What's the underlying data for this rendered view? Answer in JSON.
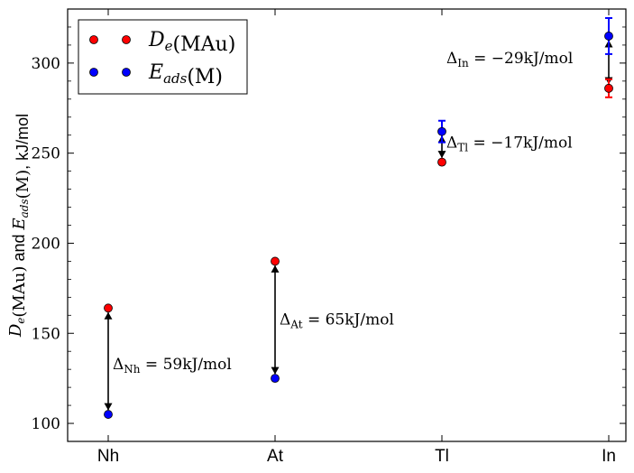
{
  "chart_data": {
    "type": "scatter",
    "categories": [
      "Nh",
      "At",
      "Tl",
      "In"
    ],
    "ylabel": {
      "parts": [
        {
          "t": "D",
          "serif": true,
          "italic": true
        },
        {
          "t": "e",
          "serif": true,
          "italic": true,
          "sub": true
        },
        {
          "t": "(MAu)",
          "serif": true
        },
        {
          "t": " and "
        },
        {
          "t": "E",
          "serif": true,
          "italic": true
        },
        {
          "t": "ads",
          "serif": true,
          "italic": true,
          "sub": true
        },
        {
          "t": "(M)",
          "serif": true
        },
        {
          "t": ", kJ/mol"
        }
      ]
    },
    "ylim": [
      90,
      330
    ],
    "yticks": [
      100,
      150,
      200,
      250,
      300
    ],
    "series": [
      {
        "name": "De(MAu)",
        "legend_parts": [
          {
            "t": "D",
            "italic": true
          },
          {
            "t": "e",
            "italic": true,
            "sub": true
          },
          {
            "t": "(MAu)"
          }
        ],
        "color": "#ff0000",
        "values": [
          164,
          190,
          245,
          286
        ],
        "errors": [
          0,
          0,
          0,
          5
        ]
      },
      {
        "name": "Eads(M)",
        "legend_parts": [
          {
            "t": "E",
            "italic": true
          },
          {
            "t": "ads",
            "italic": true,
            "sub": true
          },
          {
            "t": "(M)"
          }
        ],
        "color": "#0000ff",
        "values": [
          105,
          125,
          262,
          315
        ],
        "errors": [
          0,
          0,
          6,
          10
        ]
      }
    ],
    "annotations": [
      {
        "category": "Nh",
        "from": 105,
        "to": 164,
        "sym": "Δ",
        "sub": "Nh",
        "value_text": " = 59kJ/mol",
        "label_y": 133,
        "side": "right"
      },
      {
        "category": "At",
        "from": 125,
        "to": 190,
        "sym": "Δ",
        "sub": "At",
        "value_text": " = 65kJ/mol",
        "label_y": 158,
        "side": "right"
      },
      {
        "category": "Tl",
        "from": 262,
        "to": 245,
        "sym": "Δ",
        "sub": "Tl",
        "value_text": " = −17kJ/mol",
        "label_y": 256,
        "side": "right"
      },
      {
        "category": "In",
        "from": 315,
        "to": 286,
        "sym": "Δ",
        "sub": "In",
        "value_text": " = −29kJ/mol",
        "label_y": 303,
        "side": "left"
      }
    ],
    "legend_position": "upper-left",
    "grid": false
  }
}
